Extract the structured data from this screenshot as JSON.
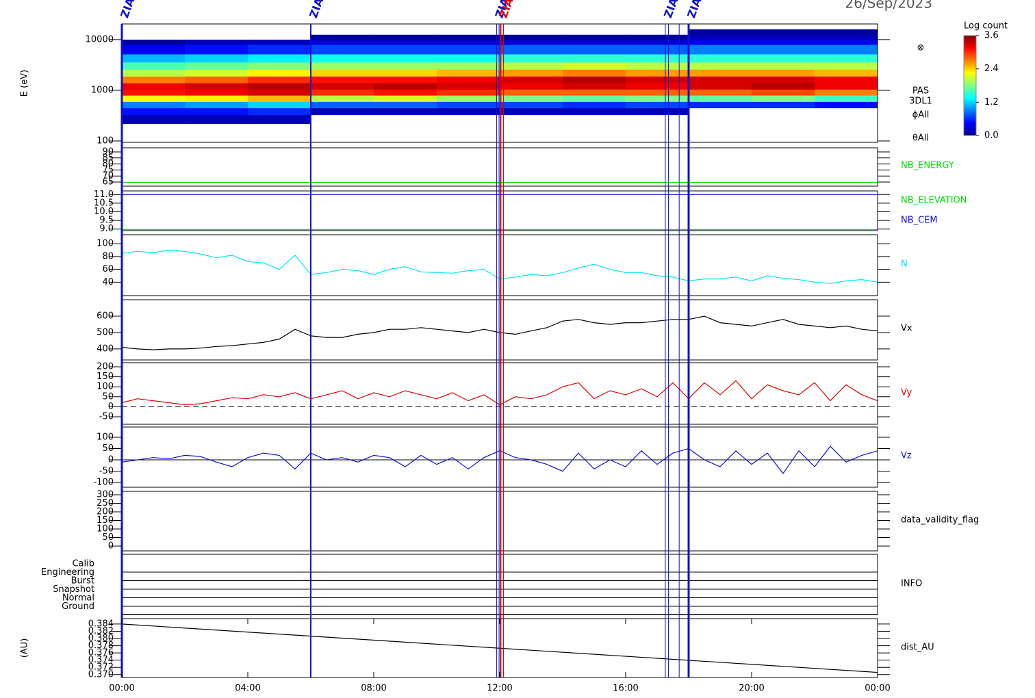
{
  "date": "26/Sep/2023",
  "time_axis": {
    "xlim": [
      0,
      24
    ],
    "xticks": [
      {
        "value": 0,
        "label": "00:00"
      },
      {
        "value": 4,
        "label": "04:00"
      },
      {
        "value": 8,
        "label": "08:00"
      },
      {
        "value": 12,
        "label": "12:00"
      },
      {
        "value": 16,
        "label": "16:00"
      },
      {
        "value": 20,
        "label": "20:00"
      },
      {
        "value": 24,
        "label": "00:00"
      }
    ]
  },
  "markers": [
    {
      "x": 0,
      "color": "#1010d0",
      "width": 3,
      "label": "ZIAS"
    },
    {
      "x": 6,
      "color": "#1010d0",
      "width": 2,
      "label": "ZIAS"
    },
    {
      "x": 11.9,
      "color": "#1010d0",
      "width": 1,
      "label": "ZIAS"
    },
    {
      "x": 11.98,
      "color": "#1010d0",
      "width": 1
    },
    {
      "x": 12.03,
      "color": "#e00000",
      "width": 2,
      "label": "ZIAS"
    },
    {
      "x": 12.12,
      "color": "#e00000",
      "width": 1
    },
    {
      "x": 17.26,
      "color": "#1010d0",
      "width": 1,
      "label": "ZIAS"
    },
    {
      "x": 17.36,
      "color": "#1010d0",
      "width": 1
    },
    {
      "x": 17.7,
      "color": "#1010d0",
      "width": 1
    },
    {
      "x": 18.0,
      "color": "#1010d0",
      "width": 3,
      "label": "ZIAS"
    }
  ],
  "chart_data": [
    {
      "type": "heatmap",
      "ylabel": "E (eV)",
      "log_y": true,
      "ylim": [
        94,
        20400
      ],
      "yticks": [
        100,
        1000,
        10000
      ],
      "x_bins": [
        0,
        2,
        4,
        6,
        8,
        10,
        12,
        14,
        16,
        18,
        20,
        22,
        24
      ],
      "y_bins": [
        220,
        330,
        450,
        600,
        800,
        1050,
        1400,
        1900,
        2600,
        3600,
        5200,
        8000,
        10000,
        12500,
        16000
      ],
      "values": [
        [
          0.2,
          0.5,
          0.9,
          2.2,
          3.1,
          3.2,
          2.7,
          2.0,
          1.6,
          1.1,
          0.4,
          0.1,
          null,
          null
        ],
        [
          0.2,
          0.5,
          1.0,
          2.3,
          3.2,
          3.3,
          2.8,
          2.1,
          1.7,
          1.2,
          0.5,
          0.2,
          null,
          null
        ],
        [
          0.2,
          0.6,
          1.2,
          2.5,
          3.3,
          3.4,
          3.0,
          2.3,
          1.8,
          1.3,
          0.6,
          0.2,
          null,
          null
        ],
        [
          null,
          0.2,
          0.8,
          2.0,
          3.0,
          3.3,
          3.1,
          2.4,
          1.9,
          1.4,
          0.7,
          0.3,
          0.1,
          null
        ],
        [
          null,
          0.2,
          0.8,
          2.1,
          3.1,
          3.4,
          3.1,
          2.4,
          1.9,
          1.4,
          0.7,
          0.3,
          0.1,
          null
        ],
        [
          null,
          0.2,
          0.7,
          1.9,
          3.0,
          3.3,
          3.2,
          2.5,
          1.9,
          1.4,
          0.7,
          0.3,
          0.1,
          null
        ],
        [
          null,
          0.2,
          0.7,
          1.8,
          2.8,
          3.2,
          3.3,
          2.6,
          2.0,
          1.5,
          0.8,
          0.3,
          0.1,
          null
        ],
        [
          null,
          0.2,
          0.6,
          1.7,
          2.8,
          3.3,
          3.4,
          2.7,
          2.1,
          1.5,
          0.8,
          0.3,
          0.1,
          null
        ],
        [
          null,
          0.2,
          0.7,
          1.8,
          2.8,
          3.2,
          3.3,
          2.6,
          2.0,
          1.5,
          0.8,
          0.3,
          0.1,
          null
        ],
        [
          null,
          null,
          0.6,
          1.7,
          2.8,
          3.3,
          3.3,
          2.6,
          2.0,
          1.5,
          0.9,
          0.4,
          0.2,
          0.1
        ],
        [
          null,
          null,
          0.6,
          1.8,
          2.9,
          3.4,
          3.3,
          2.6,
          2.0,
          1.5,
          0.9,
          0.4,
          0.2,
          0.1
        ],
        [
          null,
          null,
          0.5,
          1.6,
          2.7,
          3.2,
          3.2,
          2.5,
          2.0,
          1.5,
          0.9,
          0.4,
          0.2,
          0.1
        ]
      ],
      "colorbar": {
        "title": "Log count",
        "zlim": [
          0,
          3.6
        ],
        "zticks": [
          {
            "value": 0,
            "label": "0.0"
          },
          {
            "value": 1.2,
            "label": "1.2"
          },
          {
            "value": 2.4,
            "label": "2.4"
          },
          {
            "value": 3.6,
            "label": "3.6"
          }
        ]
      },
      "side_labels": [
        "⊗",
        "PAS",
        "3DL1",
        "ϕAll",
        "θAll"
      ]
    },
    {
      "type": "line",
      "ylim": [
        61.6,
        93.4
      ],
      "yticks": [
        65,
        70,
        75,
        80,
        85,
        90
      ],
      "x": [
        0,
        24
      ],
      "series": [
        {
          "name": "NB_ENERGY",
          "color": "#00dd00",
          "values": [
            64.7,
            64.7
          ]
        }
      ]
    },
    {
      "type": "line",
      "ylim": [
        8.91,
        11.21
      ],
      "yticks": [
        {
          "value": 9,
          "label": "9.0"
        },
        {
          "value": 9.5,
          "label": "9.5"
        },
        {
          "value": 10,
          "label": "10.0"
        },
        {
          "value": 10.5,
          "label": "10.5"
        },
        {
          "value": 11,
          "label": "11.0"
        }
      ],
      "x": [
        0,
        24
      ],
      "series": [
        {
          "name": "NB_ELEVATION",
          "color": "#00dd00",
          "values": [
            8.97,
            8.97
          ]
        },
        {
          "name": "NB_CEM",
          "color": "#1010d0",
          "values": [
            11,
            11
          ]
        }
      ]
    },
    {
      "type": "line",
      "ylim": [
        19,
        114
      ],
      "yticks": [
        40,
        60,
        80,
        100
      ],
      "x": [
        0,
        0.5,
        1,
        1.5,
        2,
        2.5,
        3,
        3.5,
        4,
        4.5,
        5,
        5.5,
        6,
        6.5,
        7,
        7.5,
        8,
        8.5,
        9,
        9.5,
        10,
        10.5,
        11,
        11.5,
        12,
        12.5,
        13,
        13.5,
        14,
        14.5,
        15,
        15.5,
        16,
        16.5,
        17,
        17.5,
        18,
        18.5,
        19,
        19.5,
        20,
        20.5,
        21,
        21.5,
        22,
        22.5,
        23,
        23.5,
        24
      ],
      "series": [
        {
          "name": "N",
          "color": "#00e5ee",
          "values": [
            85,
            88,
            86,
            90,
            88,
            84,
            78,
            82,
            72,
            70,
            60,
            82,
            52,
            55,
            60,
            58,
            52,
            60,
            64,
            56,
            55,
            54,
            58,
            60,
            45,
            48,
            52,
            50,
            55,
            62,
            68,
            60,
            55,
            55,
            50,
            48,
            42,
            45,
            45,
            48,
            42,
            50,
            46,
            44,
            40,
            38,
            42,
            44,
            40
          ]
        }
      ]
    },
    {
      "type": "line",
      "ylim": [
        333,
        700
      ],
      "yticks": [
        400,
        500,
        600
      ],
      "x": [
        0,
        0.5,
        1,
        1.5,
        2,
        2.5,
        3,
        3.5,
        4,
        4.5,
        5,
        5.5,
        6,
        6.5,
        7,
        7.5,
        8,
        8.5,
        9,
        9.5,
        10,
        10.5,
        11,
        11.5,
        12,
        12.5,
        13,
        13.5,
        14,
        14.5,
        15,
        15.5,
        16,
        16.5,
        17,
        17.5,
        18,
        18.5,
        19,
        19.5,
        20,
        20.5,
        21,
        21.5,
        22,
        22.5,
        23,
        23.5,
        24
      ],
      "series": [
        {
          "name": "Vx",
          "color": "#000000",
          "values": [
            410,
            400,
            395,
            400,
            400,
            405,
            415,
            420,
            430,
            440,
            460,
            520,
            480,
            470,
            470,
            490,
            500,
            520,
            520,
            530,
            520,
            510,
            500,
            520,
            500,
            490,
            510,
            530,
            570,
            580,
            560,
            550,
            560,
            560,
            570,
            580,
            580,
            600,
            560,
            550,
            540,
            560,
            580,
            550,
            540,
            530,
            540,
            520,
            510
          ]
        }
      ]
    },
    {
      "type": "line",
      "ylim": [
        -87.7,
        220.5
      ],
      "yticks": [
        -50,
        0,
        50,
        100,
        150,
        200
      ],
      "zero_line": "dashed",
      "x": [
        0,
        0.5,
        1,
        1.5,
        2,
        2.5,
        3,
        3.5,
        4,
        4.5,
        5,
        5.5,
        6,
        6.5,
        7,
        7.5,
        8,
        8.5,
        9,
        9.5,
        10,
        10.5,
        11,
        11.5,
        12,
        12.5,
        13,
        13.5,
        14,
        14.5,
        15,
        15.5,
        16,
        16.5,
        17,
        17.5,
        18,
        18.5,
        19,
        19.5,
        20,
        20.5,
        21,
        21.5,
        22,
        22.5,
        23,
        23.5,
        24
      ],
      "series": [
        {
          "name": "Vy",
          "color": "#e00000",
          "values": [
            20,
            40,
            30,
            20,
            10,
            15,
            30,
            45,
            40,
            60,
            50,
            70,
            40,
            60,
            80,
            40,
            70,
            50,
            80,
            60,
            40,
            70,
            30,
            60,
            10,
            50,
            40,
            60,
            100,
            120,
            40,
            80,
            60,
            90,
            50,
            120,
            40,
            120,
            60,
            130,
            40,
            110,
            80,
            60,
            120,
            30,
            110,
            60,
            30
          ]
        }
      ]
    },
    {
      "type": "line",
      "ylim": [
        -121,
        145.5
      ],
      "yticks": [
        -100,
        -50,
        0,
        50,
        100
      ],
      "zero_line": "solid",
      "x": [
        0,
        0.5,
        1,
        1.5,
        2,
        2.5,
        3,
        3.5,
        4,
        4.5,
        5,
        5.5,
        6,
        6.5,
        7,
        7.5,
        8,
        8.5,
        9,
        9.5,
        10,
        10.5,
        11,
        11.5,
        12,
        12.5,
        13,
        13.5,
        14,
        14.5,
        15,
        15.5,
        16,
        16.5,
        17,
        17.5,
        18,
        18.5,
        19,
        19.5,
        20,
        20.5,
        21,
        21.5,
        22,
        22.5,
        23,
        23.5,
        24
      ],
      "series": [
        {
          "name": "Vz",
          "color": "#1010d0",
          "values": [
            -10,
            0,
            10,
            5,
            20,
            15,
            -10,
            -30,
            10,
            30,
            20,
            -40,
            30,
            0,
            10,
            -10,
            20,
            10,
            -30,
            20,
            -20,
            10,
            -40,
            10,
            40,
            10,
            0,
            -20,
            -50,
            30,
            -40,
            0,
            -30,
            40,
            -20,
            30,
            50,
            0,
            -30,
            40,
            -20,
            30,
            -60,
            40,
            -30,
            60,
            -10,
            20,
            40
          ]
        }
      ]
    },
    {
      "type": "line",
      "ylim": [
        -28,
        320
      ],
      "yticks": [
        0,
        50,
        100,
        150,
        200,
        250,
        300
      ],
      "series": [],
      "side_labels": [
        "data_validity_flag"
      ]
    },
    {
      "type": "categorical",
      "categories": [
        "Calib",
        "Engineering",
        "Burst",
        "Snapshot",
        "Normal",
        "Ground"
      ],
      "side_labels": [
        "INFO"
      ]
    },
    {
      "type": "line",
      "ylabel": "(AU)",
      "ylim": [
        0.3692,
        0.3855
      ],
      "yticks": [
        0.384,
        0.382,
        {
          "value": 0.38,
          "label": "0.380"
        },
        0.378,
        0.376,
        0.374,
        0.372,
        {
          "value": 0.37,
          "label": "0.370"
        }
      ],
      "x": [
        0,
        24
      ],
      "series": [
        {
          "name": "dist_AU",
          "color": "#000000",
          "values": [
            0.384,
            0.3706
          ]
        }
      ]
    }
  ]
}
